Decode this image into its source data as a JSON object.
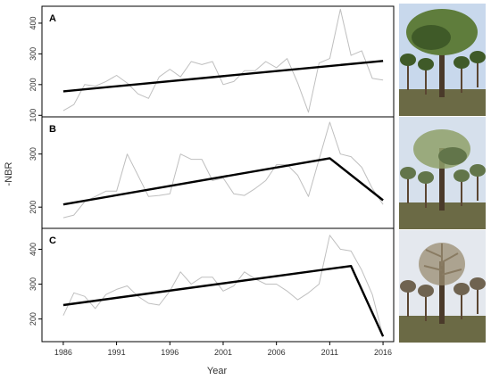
{
  "figure": {
    "ylabel": "-NBR",
    "xlabel": "Year"
  },
  "chart_data": [
    {
      "type": "line",
      "panel_label": "A",
      "xlim": [
        1984,
        2017
      ],
      "ylim": [
        95,
        455
      ],
      "yticks": [
        100,
        200,
        300,
        400
      ],
      "grid": false,
      "series": [
        {
          "role": "observed",
          "color": "#bfbfbf",
          "x": [
            1986,
            1987,
            1988,
            1989,
            1990,
            1991,
            1992,
            1993,
            1994,
            1995,
            1996,
            1997,
            1998,
            1999,
            2000,
            2001,
            2002,
            2003,
            2004,
            2005,
            2006,
            2007,
            2008,
            2009,
            2010,
            2011,
            2012,
            2013,
            2014,
            2015,
            2016
          ],
          "y": [
            115,
            135,
            200,
            195,
            210,
            230,
            205,
            170,
            155,
            225,
            250,
            225,
            275,
            265,
            275,
            200,
            210,
            245,
            245,
            275,
            255,
            285,
            205,
            110,
            270,
            285,
            445,
            295,
            310,
            220,
            215
          ]
        },
        {
          "role": "fitted",
          "color": "#000000",
          "x": [
            1986,
            2016
          ],
          "y": [
            178,
            277
          ]
        }
      ]
    },
    {
      "type": "line",
      "panel_label": "B",
      "xlim": [
        1984,
        2017
      ],
      "ylim": [
        160,
        370
      ],
      "yticks": [
        200,
        300
      ],
      "grid": false,
      "series": [
        {
          "role": "observed",
          "color": "#bfbfbf",
          "x": [
            1986,
            1987,
            1988,
            1989,
            1990,
            1991,
            1992,
            1993,
            1994,
            1995,
            1996,
            1997,
            1998,
            1999,
            2000,
            2001,
            2002,
            2003,
            2004,
            2005,
            2006,
            2007,
            2008,
            2009,
            2010,
            2011,
            2012,
            2013,
            2014,
            2015,
            2016
          ],
          "y": [
            180,
            185,
            210,
            220,
            230,
            230,
            300,
            260,
            220,
            222,
            225,
            300,
            290,
            290,
            250,
            255,
            225,
            222,
            235,
            250,
            280,
            280,
            260,
            220,
            290,
            360,
            300,
            295,
            275,
            235,
            205
          ]
        },
        {
          "role": "fitted",
          "color": "#000000",
          "x": [
            1986,
            2011,
            2016
          ],
          "y": [
            205,
            292,
            213
          ]
        }
      ]
    },
    {
      "type": "line",
      "panel_label": "C",
      "xlim": [
        1984,
        2017
      ],
      "ylim": [
        135,
        460
      ],
      "yticks": [
        200,
        300,
        400
      ],
      "grid": false,
      "series": [
        {
          "role": "observed",
          "color": "#bfbfbf",
          "x": [
            1986,
            1987,
            1988,
            1989,
            1990,
            1991,
            1992,
            1993,
            1994,
            1995,
            1996,
            1997,
            1998,
            1999,
            2000,
            2001,
            2002,
            2003,
            2004,
            2005,
            2006,
            2007,
            2008,
            2009,
            2010,
            2011,
            2012,
            2013,
            2014,
            2015,
            2016
          ],
          "y": [
            210,
            275,
            265,
            230,
            270,
            285,
            295,
            265,
            245,
            240,
            280,
            335,
            300,
            320,
            320,
            280,
            295,
            335,
            315,
            300,
            300,
            280,
            255,
            275,
            300,
            440,
            400,
            395,
            340,
            270,
            150
          ]
        },
        {
          "role": "fitted",
          "color": "#000000",
          "x": [
            1986,
            2013,
            2016
          ],
          "y": [
            240,
            352,
            150
          ]
        }
      ]
    }
  ],
  "xaxis": {
    "ticks": [
      1986,
      1991,
      1996,
      2001,
      2006,
      2011,
      2016
    ]
  },
  "photos": [
    {
      "name": "photo-healthy-pine",
      "canopy": "#5f7d3c",
      "canopy_dark": "#3f5a28",
      "sky": "#c8d8ec"
    },
    {
      "name": "photo-declining-pine",
      "canopy": "#8fa06a",
      "canopy_dark": "#62754a",
      "sky": "#d6e0ec"
    },
    {
      "name": "photo-dead-pine",
      "canopy": "#9a8c70",
      "canopy_dark": "#6f6350",
      "sky": "#e4e8ee"
    }
  ]
}
